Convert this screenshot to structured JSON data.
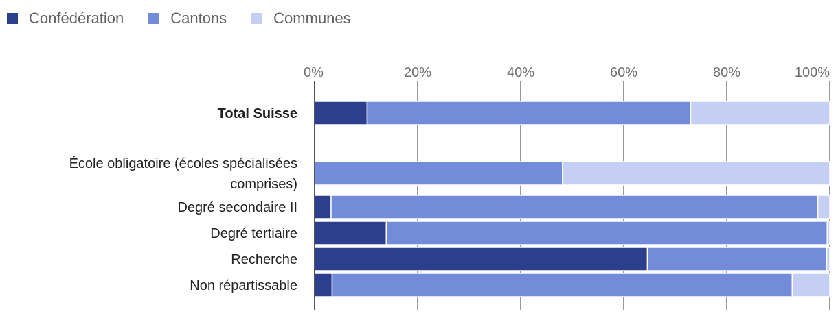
{
  "chart_data": {
    "type": "bar",
    "orientation": "horizontal",
    "stacked": "percent",
    "title": "",
    "xlabel": "",
    "ylabel": "",
    "xlim": [
      0,
      100
    ],
    "x_ticks": [
      "0%",
      "20%",
      "40%",
      "60%",
      "80%",
      "100%"
    ],
    "legend_position": "top-left",
    "grid": true,
    "categories": [
      {
        "label": "Total Suisse",
        "bold": true
      },
      {
        "label": "École obligatoire (écoles spécialisées comprises)",
        "lines": [
          "École obligatoire (écoles spécialisées",
          "comprises)"
        ],
        "bold": false
      },
      {
        "label": "Degré secondaire II",
        "bold": false
      },
      {
        "label": "Degré tertiaire",
        "bold": false
      },
      {
        "label": "Recherche",
        "bold": false
      },
      {
        "label": "Non répartissable",
        "bold": false
      }
    ],
    "series": [
      {
        "name": "Confédération",
        "color": "#2b3f8c",
        "values": [
          10.2,
          0,
          3.2,
          13.9,
          64.6,
          3.4
        ]
      },
      {
        "name": "Cantons",
        "color": "#738cd9",
        "values": [
          62.8,
          48.1,
          94.5,
          85.6,
          34.8,
          89.3
        ]
      },
      {
        "name": "Communes",
        "color": "#c5cef3",
        "values": [
          27.0,
          51.9,
          2.3,
          0.5,
          0.6,
          7.3
        ]
      }
    ]
  }
}
